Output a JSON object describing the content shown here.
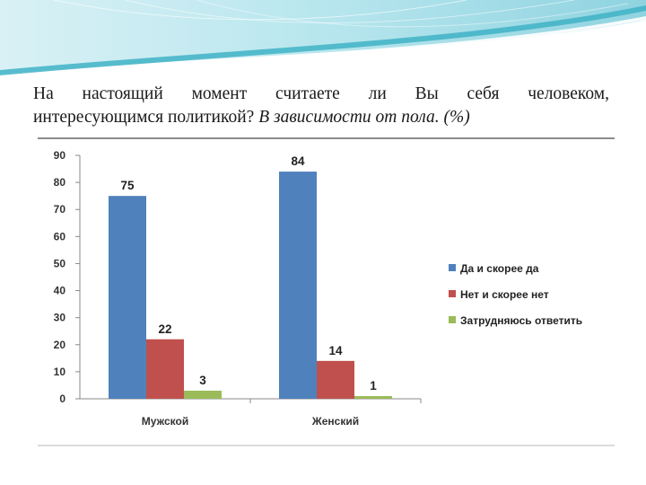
{
  "slide": {
    "title_line1": "На настоящий момент считаете ли Вы себя человеком,",
    "title_line2_regular": "интересующимся политикой? ",
    "title_line2_italic": "В зависимости от пола. (%)"
  },
  "colors": {
    "banner_teal": "#3fb3c6",
    "series": [
      "#4f81bd",
      "#c0504d",
      "#9bbb59"
    ]
  },
  "chart_data": {
    "type": "bar",
    "title": "",
    "xlabel": "",
    "ylabel": "",
    "categories": [
      "Мужской",
      "Женский"
    ],
    "series": [
      {
        "name": "Да и скорее да",
        "values": [
          75,
          84
        ]
      },
      {
        "name": "Нет и скорее нет",
        "values": [
          22,
          14
        ]
      },
      {
        "name": "Затрудняюсь ответить",
        "values": [
          3,
          1
        ]
      }
    ],
    "ylim": [
      0,
      90
    ],
    "yticks": [
      0,
      10,
      20,
      30,
      40,
      50,
      60,
      70,
      80,
      90
    ],
    "grid": false,
    "legend_position": "right",
    "data_labels": true
  }
}
